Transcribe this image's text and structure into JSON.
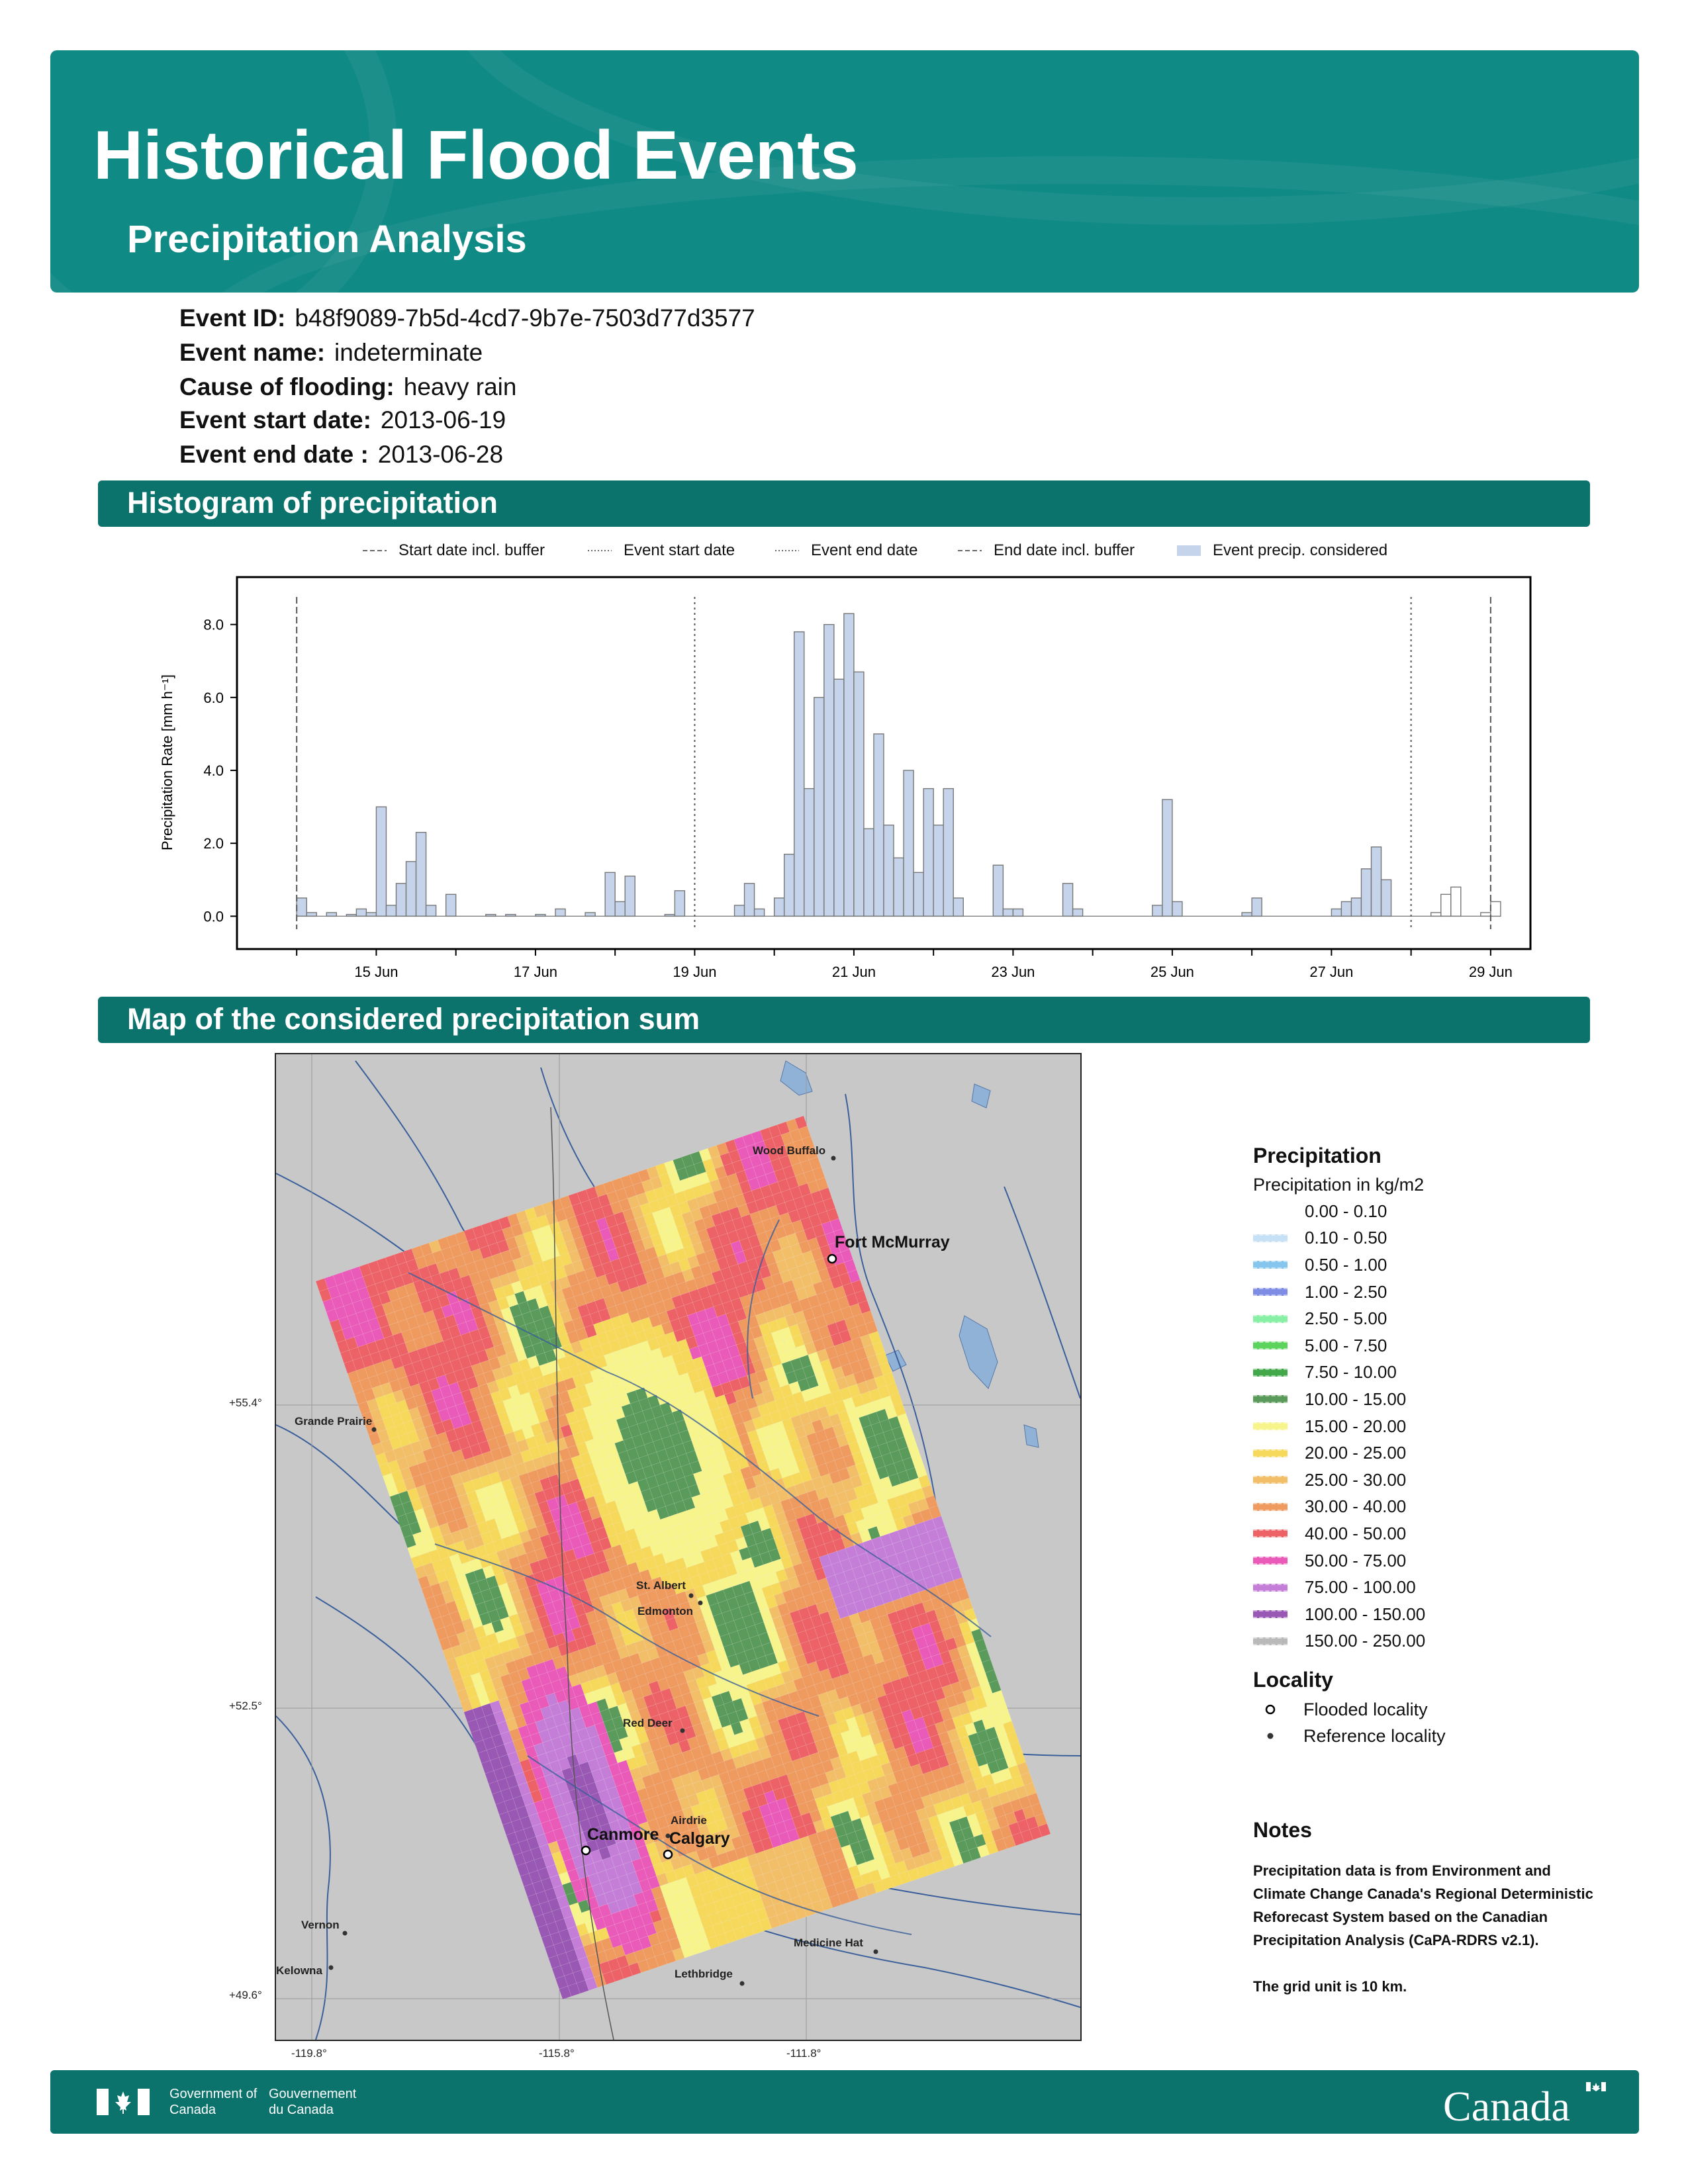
{
  "header": {
    "title": "Historical Flood Events",
    "subtitle": "Precipitation Analysis"
  },
  "event_info": [
    {
      "label": "Event ID:",
      "value": "b48f9089-7b5d-4cd7-9b7e-7503d77d3577"
    },
    {
      "label": "Event name:",
      "value": "indeterminate"
    },
    {
      "label": "Cause of flooding:",
      "value": "heavy rain"
    },
    {
      "label": "Event start date:",
      "value": "2013-06-19"
    },
    {
      "label": "Event end date :",
      "value": "2013-06-28"
    }
  ],
  "histogram_section": {
    "title": "Histogram of precipitation"
  },
  "map_section": {
    "title": "Map of the considered precipitation sum"
  },
  "chart_data": {
    "type": "bar",
    "ylabel": "Precipitation Rate [mm h⁻¹]",
    "xlabel": "",
    "ylim": [
      -0.9,
      9.3
    ],
    "xlim": [
      "2013-06-13T06:00",
      "2013-06-29T12:00"
    ],
    "yticks": [
      "0.0",
      "2.0",
      "4.0",
      "6.0",
      "8.0"
    ],
    "xticks": [
      "15 Jun",
      "17 Jun",
      "19 Jun",
      "21 Jun",
      "23 Jun",
      "25 Jun",
      "27 Jun",
      "29 Jun"
    ],
    "legend": {
      "position": "top",
      "entries": [
        "Start date incl. buffer",
        "Event start date",
        "Event end date",
        "End date incl. buffer",
        "Event precip. considered"
      ]
    },
    "vertical_lines": [
      {
        "name": "Start date incl. buffer",
        "date": "2013-06-14",
        "style": "dashed"
      },
      {
        "name": "Event start date",
        "date": "2013-06-19",
        "style": "dotted"
      },
      {
        "name": "Event end date",
        "date": "2013-06-28",
        "style": "dotted"
      },
      {
        "name": "End date incl. buffer",
        "date": "2013-06-29",
        "style": "dashed"
      }
    ],
    "series": [
      {
        "name": "Event precip. considered",
        "points": [
          [
            "2013-06-14T00:00",
            0.5
          ],
          [
            "2013-06-14T03:00",
            0.1
          ],
          [
            "2013-06-14T09:00",
            0.1
          ],
          [
            "2013-06-14T15:00",
            0.05
          ],
          [
            "2013-06-14T18:00",
            0.2
          ],
          [
            "2013-06-14T21:00",
            0.1
          ],
          [
            "2013-06-15T00:00",
            3.0
          ],
          [
            "2013-06-15T03:00",
            0.3
          ],
          [
            "2013-06-15T06:00",
            0.9
          ],
          [
            "2013-06-15T09:00",
            1.5
          ],
          [
            "2013-06-15T12:00",
            2.3
          ],
          [
            "2013-06-15T15:00",
            0.3
          ],
          [
            "2013-06-15T21:00",
            0.6
          ],
          [
            "2013-06-16T09:00",
            0.05
          ],
          [
            "2013-06-16T15:00",
            0.05
          ],
          [
            "2013-06-17T00:00",
            0.05
          ],
          [
            "2013-06-17T06:00",
            0.2
          ],
          [
            "2013-06-17T15:00",
            0.1
          ],
          [
            "2013-06-17T21:00",
            1.2
          ],
          [
            "2013-06-18T00:00",
            0.4
          ],
          [
            "2013-06-18T03:00",
            1.1
          ],
          [
            "2013-06-18T15:00",
            0.05
          ],
          [
            "2013-06-18T18:00",
            0.7
          ],
          [
            "2013-06-19T12:00",
            0.3
          ],
          [
            "2013-06-19T15:00",
            0.9
          ],
          [
            "2013-06-19T18:00",
            0.2
          ],
          [
            "2013-06-20T00:00",
            0.5
          ],
          [
            "2013-06-20T03:00",
            1.7
          ],
          [
            "2013-06-20T06:00",
            7.8
          ],
          [
            "2013-06-20T09:00",
            3.5
          ],
          [
            "2013-06-20T12:00",
            6.0
          ],
          [
            "2013-06-20T15:00",
            8.0
          ],
          [
            "2013-06-20T18:00",
            6.5
          ],
          [
            "2013-06-20T21:00",
            8.3
          ],
          [
            "2013-06-21T00:00",
            6.7
          ],
          [
            "2013-06-21T03:00",
            2.4
          ],
          [
            "2013-06-21T06:00",
            5.0
          ],
          [
            "2013-06-21T09:00",
            2.5
          ],
          [
            "2013-06-21T12:00",
            1.6
          ],
          [
            "2013-06-21T15:00",
            4.0
          ],
          [
            "2013-06-21T18:00",
            1.2
          ],
          [
            "2013-06-21T21:00",
            3.5
          ],
          [
            "2013-06-22T00:00",
            2.5
          ],
          [
            "2013-06-22T03:00",
            3.5
          ],
          [
            "2013-06-22T06:00",
            0.5
          ],
          [
            "2013-06-22T18:00",
            1.4
          ],
          [
            "2013-06-22T21:00",
            0.2
          ],
          [
            "2013-06-23T00:00",
            0.2
          ],
          [
            "2013-06-23T15:00",
            0.9
          ],
          [
            "2013-06-23T18:00",
            0.2
          ],
          [
            "2013-06-24T18:00",
            0.3
          ],
          [
            "2013-06-24T21:00",
            3.2
          ],
          [
            "2013-06-25T00:00",
            0.4
          ],
          [
            "2013-06-25T21:00",
            0.1
          ],
          [
            "2013-06-26T00:00",
            0.5
          ],
          [
            "2013-06-27T00:00",
            0.2
          ],
          [
            "2013-06-27T03:00",
            0.4
          ],
          [
            "2013-06-27T06:00",
            0.5
          ],
          [
            "2013-06-27T09:00",
            1.3
          ],
          [
            "2013-06-27T12:00",
            1.9
          ],
          [
            "2013-06-27T15:00",
            1.0
          ]
        ]
      },
      {
        "name": "outside event window",
        "points": [
          [
            "2013-06-28T06:00",
            0.1
          ],
          [
            "2013-06-28T09:00",
            0.6
          ],
          [
            "2013-06-28T12:00",
            0.8
          ],
          [
            "2013-06-28T21:00",
            0.1
          ],
          [
            "2013-06-29T00:00",
            0.4
          ]
        ]
      }
    ]
  },
  "map": {
    "axis_labels": {
      "lat": [
        "+55.4°",
        "+52.5°",
        "+49.6°"
      ],
      "lon": [
        "-119.8°",
        "-115.8°",
        "-111.8°"
      ]
    },
    "localities": {
      "flooded": [
        "Fort McMurray",
        "Canmore",
        "Calgary"
      ],
      "reference": [
        "Wood Buffalo",
        "Grande Prairie",
        "St. Albert",
        "Edmonton",
        "Red Deer",
        "Airdrie",
        "Vernon",
        "Kelowna",
        "Medicine Hat",
        "Lethbridge"
      ]
    }
  },
  "legend": {
    "precip_title": "Precipitation",
    "precip_subtitle": "Precipitation in kg/m2",
    "classes": [
      {
        "range": "0.00 - 0.10",
        "color": "#ffffff"
      },
      {
        "range": "0.10 - 0.50",
        "color": "#c6e0f5"
      },
      {
        "range": "0.50 - 1.00",
        "color": "#86c6ee"
      },
      {
        "range": "1.00 - 2.50",
        "color": "#7e8ce6"
      },
      {
        "range": "2.50 - 5.00",
        "color": "#88f0a4"
      },
      {
        "range": "5.00 - 7.50",
        "color": "#5cd35c"
      },
      {
        "range": "7.50 - 10.00",
        "color": "#42a84a"
      },
      {
        "range": "10.00 - 15.00",
        "color": "#5a9a5a"
      },
      {
        "range": "15.00 - 20.00",
        "color": "#f6f48a"
      },
      {
        "range": "20.00 - 25.00",
        "color": "#f6d85a"
      },
      {
        "range": "25.00 - 30.00",
        "color": "#f2be68"
      },
      {
        "range": "30.00 - 40.00",
        "color": "#ef9a5e"
      },
      {
        "range": "40.00 - 50.00",
        "color": "#ec6266"
      },
      {
        "range": "50.00 - 75.00",
        "color": "#ea5ab8"
      },
      {
        "range": "75.00 - 100.00",
        "color": "#c47ed8"
      },
      {
        "range": "100.00 - 150.00",
        "color": "#9858b4"
      },
      {
        "range": "150.00 - 250.00",
        "color": "#b9b9b9"
      }
    ],
    "locality_title": "Locality",
    "flooded_label": "Flooded locality",
    "reference_label": "Reference locality"
  },
  "notes": {
    "title": "Notes",
    "text1": "Precipitation data is from Environment and Climate Change Canada's Regional Deterministic Reforecast System based on the Canadian Precipitation Analysis (CaPA-RDRS v2.1).",
    "text2": "The grid unit is 10 km."
  },
  "footer": {
    "gov_en": "Government of Canada",
    "gov_fr": "Gouvernement du Canada",
    "wordmark": "Canada"
  },
  "colors": {
    "banner": "#108a84",
    "section": "#0b726c",
    "precip_fill": "#c5d4ea",
    "bar_outline": "#777777"
  }
}
